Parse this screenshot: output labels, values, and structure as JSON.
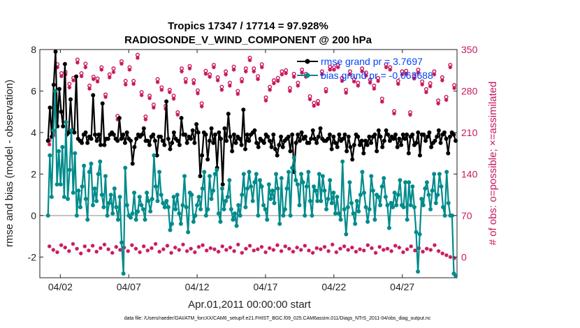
{
  "chart_data": {
    "type": "line",
    "title_line1": "Tropics 17347 / 17714 = 97.928%",
    "title_line2": "RADIOSONDE_V_WIND_COMPONENT @ 200 hPa",
    "ylabel_left": "rmse and bias (model - observation)",
    "ylabel_right": "# of obs: o=possible; ×=assimilated",
    "xlabel": "Apr.01,2011 00:00:00 start",
    "footer": "data file: /Users/raeder/DAI/ATM_forcXX/CAM6_setup/f.e21.FHIST_BGC.f09_025.CAM6assim.011/Diags_NTrS_2011-04/obs_diag_output.nc",
    "x_range": [
      0.5,
      31.0
    ],
    "ylim_left": [
      -3,
      8
    ],
    "ylim_right": [
      -35,
      350
    ],
    "left_ticks": [
      "-2",
      "0",
      "2",
      "4",
      "6",
      "8"
    ],
    "right_ticks": [
      "0",
      "70",
      "140",
      "210",
      "280",
      "350"
    ],
    "x_ticks": [
      {
        "day": 2,
        "label": "04/02"
      },
      {
        "day": 7,
        "label": "04/07"
      },
      {
        "day": 12,
        "label": "04/12"
      },
      {
        "day": 17,
        "label": "04/17"
      },
      {
        "day": 22,
        "label": "04/22"
      },
      {
        "day": 27,
        "label": "04/27"
      }
    ],
    "legend": [
      "rmse grand pr = 3.7697",
      "bias grand pr = -0.063688"
    ],
    "colors": {
      "rmse": "#000000",
      "bias": "#008b8b",
      "obs": "#c8175d",
      "zero": "#b0b0b0"
    },
    "rmse": [
      3.6,
      5.2,
      3.8,
      6.3,
      7.9,
      4.3,
      6.1,
      5.0,
      4.3,
      7.3,
      3.9,
      4.0,
      5.6,
      4.1,
      4.0,
      6.7,
      3.7,
      3.6,
      3.5,
      3.9,
      4.0,
      3.5,
      3.8,
      3.7,
      5.8,
      3.9,
      3.6,
      3.9,
      3.4,
      5.4,
      3.4,
      3.7,
      3.7,
      3.9,
      4.0,
      3.9,
      3.7,
      3.6,
      4.7,
      3.7,
      3.9,
      3.5,
      4.0,
      3.7,
      3.6,
      2.5,
      3.3,
      3.7,
      3.9,
      3.8,
      3.9,
      4.2,
      3.6,
      3.6,
      3.4,
      3.8,
      3.9,
      3.6,
      2.9,
      3.8,
      3.8,
      3.6,
      3.4,
      5.5,
      3.7,
      3.2,
      3.5,
      4.0,
      3.7,
      3.6,
      3.4,
      4.7,
      3.9,
      3.9,
      3.5,
      3.8,
      3.7,
      4.1,
      3.5,
      4.4,
      4.0,
      1.9,
      2.9,
      4.0,
      3.9,
      2.7,
      3.6,
      4.2,
      3.5,
      3.9,
      2.3,
      4.0,
      3.7,
      1.5,
      4.2,
      3.6,
      4.9,
      3.8,
      3.1,
      3.9,
      3.5,
      3.8,
      3.7,
      3.4,
      5.1,
      3.2,
      3.9,
      3.6,
      3.9,
      4.0,
      4.1,
      3.5,
      3.3,
      3.7,
      3.6,
      3.5,
      3.9,
      3.8,
      3.6,
      3.3,
      3.9,
      3.2,
      2.9,
      3.4,
      3.8,
      3.3,
      3.6,
      3.7,
      3.8,
      3.1,
      3.9,
      2.1,
      3.5,
      3.9,
      3.6,
      4.0,
      3.7,
      3.8,
      3.5,
      3.5,
      3.7,
      4.1,
      3.7,
      3.5,
      3.8,
      4.2,
      3.7,
      3.6,
      3.6,
      3.7,
      3.9,
      3.2,
      3.8,
      3.5,
      3.3,
      3.9,
      3.6,
      3.7,
      3.9,
      3.1,
      3.8,
      3.3,
      2.7,
      3.4,
      3.9,
      3.8,
      3.4,
      3.6,
      3.0,
      3.6,
      3.4,
      3.8,
      3.5,
      3.8,
      3.9,
      3.1,
      4.1,
      3.8,
      3.3,
      3.6,
      4.1,
      3.9,
      3.6,
      3.8,
      3.7,
      3.9,
      3.3,
      3.7,
      3.4,
      3.9,
      3.7,
      3.9,
      3.0,
      3.8,
      3.9,
      3.4,
      3.5,
      4.0,
      2.9,
      3.9,
      3.9,
      3.6,
      3.8,
      4.0,
      3.3,
      3.5,
      3.6,
      3.8,
      4.1,
      3.5,
      3.9,
      4.0,
      3.7,
      3.0,
      3.8,
      4.0,
      3.9,
      3.6
    ],
    "bias": [
      0.0,
      2.9,
      0.9,
      4.1,
      6.0,
      1.5,
      3.1,
      1.5,
      3.3,
      0.9,
      4.5,
      0.8,
      2.2,
      4.1,
      1.1,
      3.0,
      0.0,
      1.2,
      0.4,
      1.4,
      2.4,
      0.8,
      -0.2,
      2.1,
      2.5,
      0.5,
      1.3,
      0.7,
      2.0,
      2.6,
      1.0,
      0.4,
      1.9,
      0.0,
      0.6,
      1.0,
      0.1,
      1.3,
      0.4,
      -0.2,
      0.9,
      -1.3,
      -2.8,
      2.3,
      0.5,
      0.0,
      -0.1,
      0.1,
      1.1,
      -0.2,
      0.2,
      0.9,
      0.5,
      0.3,
      -0.2,
      1.1,
      0.7,
      0.2,
      0.8,
      2.9,
      1.4,
      0.7,
      2.1,
      1.0,
      0.6,
      0.4,
      0.7,
      0.4,
      -0.7,
      -0.4,
      0.9,
      0.3,
      1.0,
      0.1,
      -0.4,
      0.5,
      1.9,
      0.4,
      -0.8,
      1.1,
      1.0,
      -0.3,
      0.0,
      0.5,
      0.9,
      0.3,
      1.3,
      2.1,
      0.0,
      0.3,
      1.9,
      0.8,
      1.2,
      2.0,
      2.2,
      0.1,
      -0.3,
      1.3,
      0.3,
      0.7,
      0.9,
      1.7,
      0.3,
      -0.2,
      0.1,
      -0.5,
      0.5,
      0.0,
      1.0,
      2.0,
      0.4,
      1.3,
      2.1,
      1.4,
      0.7,
      1.6,
      2.0,
      0.0,
      1.7,
      1.4,
      0.5,
      0.3,
      -0.2,
      1.5,
      0.8,
      1.2,
      0.6,
      2.0,
      1.3,
      -0.4,
      1.8,
      0.0,
      0.3,
      1.3,
      2.1,
      0.0,
      2.3,
      2.8,
      1.7,
      1.5,
      0.5,
      2.0,
      1.6,
      0.0,
      1.4,
      2.1,
      0.7,
      0.0,
      1.4,
      1.2,
      0.7,
      2.0,
      0.7,
      1.9,
      1.2,
      0.3,
      0.8,
      1.7,
      0.6,
      1.1,
      0.1,
      0.9,
      0.1,
      -0.2,
      2.6,
      0.3,
      -0.9,
      0.4,
      1.6,
      0.6,
      0.1,
      -0.4,
      0.7,
      0.2,
      1.0,
      2.1,
      1.1,
      0.4,
      -0.3,
      0.3,
      1.9,
      1.2,
      -0.2,
      1.0,
      0.9,
      0.5,
      1.4,
      1.8,
      0.9,
      0.5,
      -0.6,
      0.6,
      0.4,
      1.1,
      0.5,
      1.0,
      1.7,
      0.5,
      0.4,
      1.6,
      -0.2,
      1.6,
      0.5,
      1.4,
      0.4,
      -0.8,
      -2.7,
      -0.9,
      0.8,
      0.5,
      1.3,
      1.6,
      1.0,
      0.3,
      1.2,
      2.0,
      0.6,
      1.0,
      2.0,
      1.4,
      0.4,
      0.0,
      2.1,
      0.6,
      0.0,
      0.0,
      -2.8,
      -2.9
    ],
    "obs_possible_counts": [
      197,
      210,
      325,
      310,
      312,
      292,
      302,
      333,
      310,
      326,
      289,
      304,
      301,
      320,
      274,
      308,
      318,
      238,
      330,
      297,
      320,
      297,
      341,
      278,
      237,
      272,
      257,
      300,
      286,
      255,
      282,
      272,
      244,
      318,
      300,
      322,
      298,
      281,
      259,
      314,
      308,
      324,
      303,
      287,
      313,
      294,
      321,
      280,
      300,
      318,
      336,
      318,
      305,
      325,
      269,
      287,
      298,
      302,
      313,
      315,
      285,
      309,
      294,
      316,
      309,
      271,
      260,
      263,
      313,
      283,
      321,
      320,
      324,
      302,
      282,
      313,
      300,
      294,
      318,
      311,
      299,
      289,
      302,
      267,
      325,
      320,
      246,
      297,
      313,
      314,
      244,
      306,
      316,
      296,
      283,
      293,
      313,
      264,
      303,
      270,
      324,
      290
    ],
    "obs_assimilated_counts": [
      190,
      205,
      320,
      305,
      308,
      286,
      298,
      328,
      305,
      320,
      284,
      300,
      296,
      316,
      270,
      303,
      312,
      232,
      326,
      291,
      316,
      292,
      336,
      273,
      232,
      268,
      252,
      295,
      282,
      250,
      278,
      267,
      240,
      313,
      295,
      318,
      293,
      276,
      254,
      309,
      304,
      320,
      298,
      282,
      308,
      289,
      316,
      275,
      296,
      313,
      332,
      313,
      300,
      320,
      264,
      282,
      293,
      297,
      308,
      310,
      280,
      304,
      289,
      311,
      304,
      266,
      255,
      258,
      308,
      279,
      316,
      316,
      320,
      297,
      277,
      308,
      296,
      289,
      313,
      306,
      294,
      284,
      297,
      262,
      320,
      316,
      242,
      292,
      308,
      309,
      240,
      301,
      311,
      291,
      278,
      288,
      308,
      259,
      298,
      265,
      320,
      285
    ],
    "obs_low_counts": [
      18,
      12,
      8,
      20,
      16,
      10,
      22,
      14,
      6,
      18,
      11,
      19,
      9,
      15,
      21,
      13,
      7,
      17,
      12,
      16,
      10,
      20,
      14,
      8,
      18,
      11,
      15,
      22,
      9,
      13,
      19,
      7,
      16,
      12,
      21,
      10,
      14,
      8,
      17,
      20,
      11,
      15,
      13,
      9,
      18,
      12,
      16,
      10,
      21,
      7,
      14,
      19,
      11,
      13,
      17,
      8,
      15,
      12,
      20,
      10,
      18,
      14,
      9,
      16,
      12,
      19,
      11,
      7,
      15,
      13,
      17,
      10,
      21,
      8,
      14,
      18,
      12,
      16,
      9,
      13,
      11,
      20,
      15,
      7,
      17,
      12,
      14,
      10,
      19,
      16,
      8,
      13,
      18,
      11,
      15,
      9,
      14,
      12,
      20,
      10,
      6,
      3,
      0,
      -2
    ]
  }
}
